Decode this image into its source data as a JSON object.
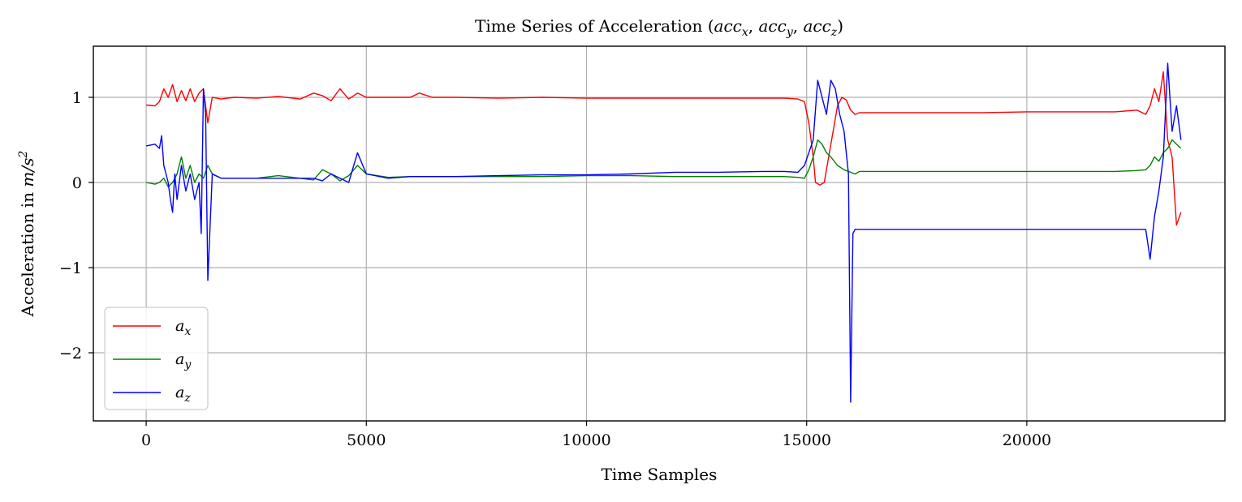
{
  "chart_data": {
    "type": "line",
    "title": "Time Series of Acceleration (acc_x, acc_y, acc_z)",
    "xlabel": "Time Samples",
    "ylabel": "Acceleration in m/s²",
    "xlim": [
      -1200,
      24500
    ],
    "ylim": [
      -2.8,
      1.6
    ],
    "xticks": [
      0,
      5000,
      10000,
      15000,
      20000
    ],
    "xtick_labels": [
      "0",
      "5000",
      "10000",
      "15000",
      "20000"
    ],
    "yticks": [
      1,
      0,
      -1,
      -2
    ],
    "ytick_labels": [
      "1",
      "0",
      "−1",
      "−2"
    ],
    "grid": true,
    "legend": {
      "placement": "lower-left"
    },
    "series": [
      {
        "name": "a_x",
        "color": "#ff0000",
        "x": [
          0,
          200,
          300,
          400,
          500,
          600,
          700,
          800,
          900,
          1000,
          1100,
          1200,
          1300,
          1400,
          1500,
          1700,
          2000,
          2500,
          3000,
          3500,
          3800,
          4000,
          4200,
          4400,
          4600,
          4800,
          5000,
          5500,
          6000,
          6200,
          6500,
          7000,
          8000,
          9000,
          10000,
          11000,
          12000,
          13000,
          14000,
          14500,
          14800,
          14950,
          15050,
          15150,
          15200,
          15300,
          15400,
          15500,
          15600,
          15700,
          15800,
          15900,
          16000,
          16100,
          16200,
          16400,
          17000,
          18000,
          19000,
          20000,
          21000,
          22000,
          22500,
          22700,
          22800,
          22900,
          23000,
          23100,
          23200,
          23300,
          23400,
          23500
        ],
        "values": [
          0.91,
          0.9,
          0.95,
          1.1,
          1.0,
          1.15,
          0.95,
          1.08,
          0.96,
          1.1,
          0.95,
          1.05,
          1.1,
          0.7,
          1.0,
          0.98,
          1.0,
          0.99,
          1.01,
          0.98,
          1.05,
          1.02,
          0.96,
          1.1,
          0.98,
          1.05,
          1.0,
          1.0,
          1.0,
          1.05,
          1.0,
          1.0,
          0.99,
          1.0,
          0.99,
          0.99,
          0.99,
          0.99,
          0.99,
          0.99,
          0.98,
          0.95,
          0.7,
          0.3,
          0.0,
          -0.03,
          0.0,
          0.3,
          0.6,
          0.9,
          1.0,
          0.97,
          0.85,
          0.8,
          0.82,
          0.82,
          0.82,
          0.82,
          0.82,
          0.83,
          0.83,
          0.83,
          0.85,
          0.8,
          0.9,
          1.1,
          0.95,
          1.3,
          0.5,
          0.3,
          -0.5,
          -0.35
        ]
      },
      {
        "name": "a_y",
        "color": "#008000",
        "x": [
          0,
          200,
          300,
          400,
          500,
          600,
          700,
          800,
          900,
          1000,
          1100,
          1200,
          1300,
          1400,
          1500,
          1700,
          2000,
          2500,
          3000,
          3500,
          3800,
          4000,
          4200,
          4400,
          4600,
          4800,
          5000,
          5500,
          6000,
          7000,
          8000,
          9000,
          10000,
          11000,
          12000,
          13000,
          14000,
          14500,
          14800,
          14950,
          15050,
          15150,
          15250,
          15350,
          15450,
          15550,
          15700,
          15850,
          16000,
          16100,
          16200,
          16400,
          17000,
          18000,
          19000,
          20000,
          21000,
          22000,
          22500,
          22700,
          22800,
          22900,
          23000,
          23100,
          23200,
          23300,
          23400,
          23500
        ],
        "values": [
          0.0,
          -0.02,
          0.0,
          0.05,
          -0.05,
          0.0,
          0.1,
          0.3,
          0.05,
          0.2,
          0.0,
          0.1,
          0.05,
          0.2,
          0.1,
          0.05,
          0.05,
          0.05,
          0.08,
          0.05,
          0.03,
          0.15,
          0.1,
          0.02,
          0.08,
          0.2,
          0.1,
          0.06,
          0.07,
          0.07,
          0.07,
          0.07,
          0.08,
          0.08,
          0.07,
          0.07,
          0.07,
          0.07,
          0.06,
          0.05,
          0.15,
          0.3,
          0.5,
          0.45,
          0.35,
          0.3,
          0.2,
          0.15,
          0.12,
          0.1,
          0.13,
          0.13,
          0.13,
          0.13,
          0.13,
          0.13,
          0.13,
          0.13,
          0.14,
          0.15,
          0.2,
          0.3,
          0.25,
          0.35,
          0.4,
          0.5,
          0.45,
          0.4
        ]
      },
      {
        "name": "a_z",
        "color": "#0000ff",
        "x": [
          0,
          200,
          300,
          350,
          400,
          500,
          550,
          600,
          650,
          700,
          800,
          900,
          1000,
          1100,
          1200,
          1250,
          1300,
          1350,
          1400,
          1500,
          1700,
          2000,
          2500,
          3000,
          3500,
          3800,
          4000,
          4200,
          4400,
          4600,
          4800,
          5000,
          5500,
          6000,
          7000,
          8000,
          9000,
          10000,
          11000,
          12000,
          13000,
          14000,
          14500,
          14800,
          14950,
          15050,
          15150,
          15250,
          15350,
          15450,
          15550,
          15650,
          15750,
          15850,
          15950,
          16000,
          16050,
          16100,
          16200,
          16400,
          17000,
          18000,
          19000,
          20000,
          21000,
          22000,
          22500,
          22700,
          22800,
          22900,
          23000,
          23100,
          23200,
          23300,
          23400,
          23500
        ],
        "values": [
          0.43,
          0.45,
          0.4,
          0.55,
          0.2,
          0.0,
          -0.2,
          -0.35,
          0.1,
          -0.2,
          0.2,
          -0.1,
          0.1,
          -0.2,
          0.0,
          -0.6,
          1.1,
          0.8,
          -1.15,
          0.1,
          0.05,
          0.05,
          0.05,
          0.05,
          0.05,
          0.05,
          0.02,
          0.1,
          0.05,
          0.0,
          0.35,
          0.1,
          0.05,
          0.07,
          0.07,
          0.08,
          0.09,
          0.09,
          0.1,
          0.12,
          0.12,
          0.13,
          0.13,
          0.12,
          0.2,
          0.35,
          0.5,
          1.2,
          1.0,
          0.8,
          1.2,
          1.1,
          0.8,
          0.6,
          0.1,
          -2.58,
          -0.6,
          -0.55,
          -0.55,
          -0.55,
          -0.55,
          -0.55,
          -0.55,
          -0.55,
          -0.55,
          -0.55,
          -0.55,
          -0.55,
          -0.9,
          -0.4,
          -0.1,
          0.3,
          1.4,
          0.6,
          0.9,
          0.5
        ]
      }
    ]
  },
  "labels": {
    "title_prefix": "Time Series of Acceleration (",
    "title_suffix": ")",
    "ylabel_text": "Acceleration in ",
    "ylabel_math_base": "m/s",
    "ylabel_math_exp": "2"
  }
}
